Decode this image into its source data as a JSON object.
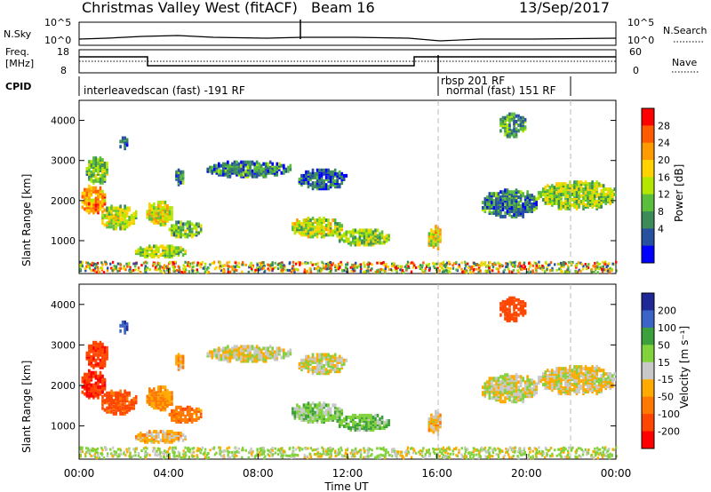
{
  "header": {
    "title": "Christmas Valley West (fitACF)",
    "beam": "Beam 16",
    "date": "13/Sep/2017"
  },
  "top_panels": {
    "nsky_label": "N.Sky",
    "nsky_ticks": [
      "10^5",
      "10^0"
    ],
    "nsearch_label": "N.Search",
    "freq_label_1": "Freq.",
    "freq_label_2": "[MHz]",
    "freq_ticks": [
      "18",
      "8"
    ],
    "nave_ticks": [
      "60",
      "0"
    ],
    "nave_label": "Nave",
    "cpid_label": "CPID",
    "cpid_entries": [
      "interleavedscan (fast) -191 RF",
      "rbsp 201 RF",
      "normal (fast) 151 RF"
    ]
  },
  "axes": {
    "ylabel": "Slant Range [km]",
    "yticks": [
      "4000",
      "3000",
      "2000",
      "1000"
    ],
    "xticks": [
      "00:00",
      "04:00",
      "08:00",
      "12:00",
      "16:00",
      "20:00",
      "00:00"
    ],
    "xlabel": "Time UT"
  },
  "colorbars": {
    "power_label": "Power [dB]",
    "power_ticks": [
      "28",
      "24",
      "20",
      "16",
      "12",
      "8",
      "4"
    ],
    "power_colors": [
      "#ff0000",
      "#ff5a00",
      "#ff9a00",
      "#ffd200",
      "#b4e600",
      "#5abe3c",
      "#3c8c5a",
      "#2850a0",
      "#0000ff"
    ],
    "velocity_label": "Velocity [m s⁻¹]",
    "velocity_ticks": [
      "200",
      "100",
      "50",
      "15",
      "-15",
      "-50",
      "-100",
      "-200"
    ],
    "velocity_colors": [
      "#1e2896",
      "#3c64c8",
      "#3ca03c",
      "#82d23c",
      "#c8c8c8",
      "#ffaa00",
      "#ff7800",
      "#ff4600",
      "#ff0000"
    ]
  },
  "chart_data": {
    "type": "heatmap",
    "x_range_hours": [
      0,
      24
    ],
    "y_range_km": [
      180,
      4500
    ],
    "power_range_db": [
      0,
      30
    ],
    "velocity_range_ms": [
      -250,
      250
    ],
    "regions": [
      {
        "t": [
          0.1,
          1.2
        ],
        "r": [
          1700,
          2400
        ],
        "p": 22,
        "v": -200
      },
      {
        "t": [
          0.3,
          1.3
        ],
        "r": [
          2400,
          3100
        ],
        "p": 12,
        "v": -180
      },
      {
        "t": [
          1.0,
          2.6
        ],
        "r": [
          1300,
          1900
        ],
        "p": 15,
        "v": -120
      },
      {
        "t": [
          1.8,
          2.2
        ],
        "r": [
          3300,
          3600
        ],
        "p": 8,
        "v": 200
      },
      {
        "t": [
          2.5,
          4.8
        ],
        "r": [
          600,
          900
        ],
        "p": 14,
        "v": -20
      },
      {
        "t": [
          3.0,
          4.2
        ],
        "r": [
          1400,
          2000
        ],
        "p": 17,
        "v": -60
      },
      {
        "t": [
          4.0,
          5.5
        ],
        "r": [
          1100,
          1500
        ],
        "p": 12,
        "v": -80
      },
      {
        "t": [
          4.3,
          4.7
        ],
        "r": [
          2400,
          2800
        ],
        "p": 8,
        "v": -40
      },
      {
        "t": [
          5.7,
          9.5
        ],
        "r": [
          2600,
          3000
        ],
        "p": 8,
        "v": 0
      },
      {
        "t": [
          9.5,
          11.8
        ],
        "r": [
          1100,
          1600
        ],
        "p": 15,
        "v": 30
      },
      {
        "t": [
          11.5,
          14.0
        ],
        "r": [
          900,
          1300
        ],
        "p": 13,
        "v": 40
      },
      {
        "t": [
          9.8,
          12.0
        ],
        "r": [
          2300,
          2800
        ],
        "p": 6,
        "v": 0
      },
      {
        "t": [
          15.6,
          16.2
        ],
        "r": [
          800,
          1400
        ],
        "p": 18,
        "v": -20
      },
      {
        "t": [
          18.0,
          20.5
        ],
        "r": [
          1600,
          2300
        ],
        "p": 8,
        "v": 0
      },
      {
        "t": [
          20.5,
          24.0
        ],
        "r": [
          1800,
          2500
        ],
        "p": 14,
        "v": -10
      },
      {
        "t": [
          18.8,
          20.0
        ],
        "r": [
          3600,
          4200
        ],
        "p": 10,
        "v": -150
      }
    ]
  }
}
